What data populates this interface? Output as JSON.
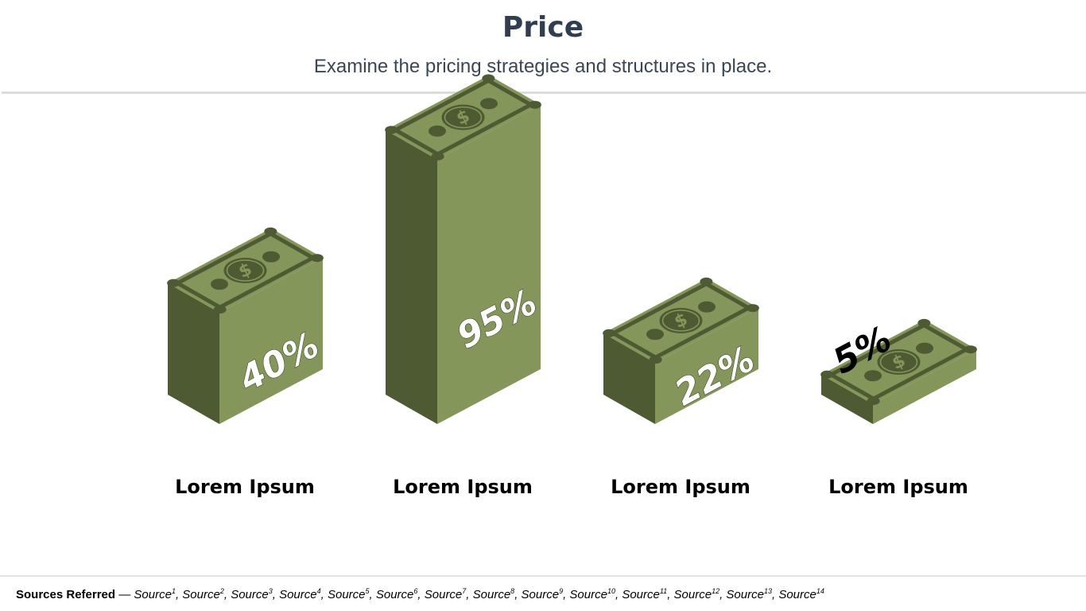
{
  "header": {
    "title": "Price",
    "subtitle": "Examine the pricing strategies and structures in place."
  },
  "colors": {
    "side_dark": "#4e5a32",
    "front": "#84965a",
    "bill_top": "#84965a",
    "bill_detail": "#4e5a32",
    "value_label": "#ffffff",
    "outside_label": "#000000"
  },
  "chart_data": {
    "type": "bar",
    "title": "",
    "categories": [
      "Lorem Ipsum",
      "Lorem Ipsum",
      "Lorem Ipsum",
      "Lorem Ipsum"
    ],
    "values": [
      40,
      95,
      22,
      5
    ],
    "value_labels": [
      "40%",
      "95%",
      "22%",
      "5%"
    ],
    "value_unit": "%",
    "ylim": [
      0,
      100
    ],
    "grid": false,
    "legend": "none"
  },
  "footer": {
    "sources_label": "Sources Referred",
    "separator": " — ",
    "source_text": "Source",
    "source_numbers": [
      "1",
      "2",
      "3",
      "4",
      "5",
      "6",
      "7",
      "8",
      "9",
      "10",
      "11",
      "12",
      "13",
      "14"
    ]
  }
}
